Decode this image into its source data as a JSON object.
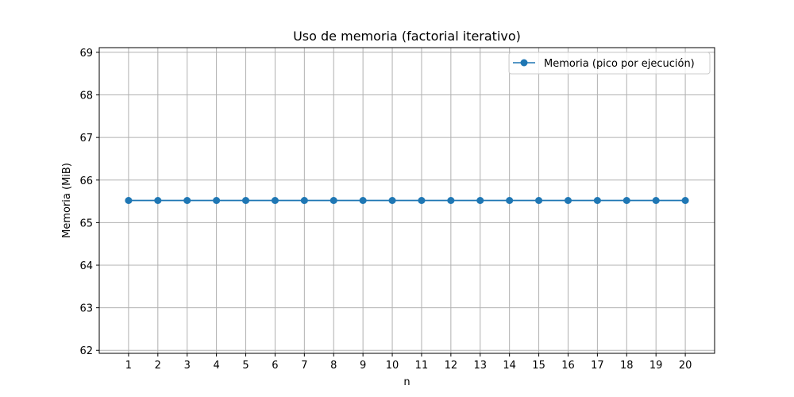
{
  "chart_data": {
    "type": "line",
    "title": "Uso de memoria (factorial iterativo)",
    "xlabel": "n",
    "ylabel": "Memoria (MiB)",
    "x": [
      1,
      2,
      3,
      4,
      5,
      6,
      7,
      8,
      9,
      10,
      11,
      12,
      13,
      14,
      15,
      16,
      17,
      18,
      19,
      20
    ],
    "x_ticks": [
      "1",
      "2",
      "3",
      "4",
      "5",
      "6",
      "7",
      "8",
      "9",
      "10",
      "11",
      "12",
      "13",
      "14",
      "15",
      "16",
      "17",
      "18",
      "19",
      "20"
    ],
    "y_ticks": [
      "62",
      "63",
      "64",
      "65",
      "66",
      "67",
      "68",
      "69"
    ],
    "xlim": [
      0,
      21
    ],
    "ylim": [
      61.93,
      69.11
    ],
    "grid": true,
    "legend_position": "top-right",
    "series": [
      {
        "name": "Memoria (pico por ejecución)",
        "values": [
          65.52,
          65.52,
          65.52,
          65.52,
          65.52,
          65.52,
          65.52,
          65.52,
          65.52,
          65.52,
          65.52,
          65.52,
          65.52,
          65.52,
          65.52,
          65.52,
          65.52,
          65.52,
          65.52,
          65.52
        ],
        "color": "#1f77b4",
        "marker": "circle"
      }
    ]
  }
}
